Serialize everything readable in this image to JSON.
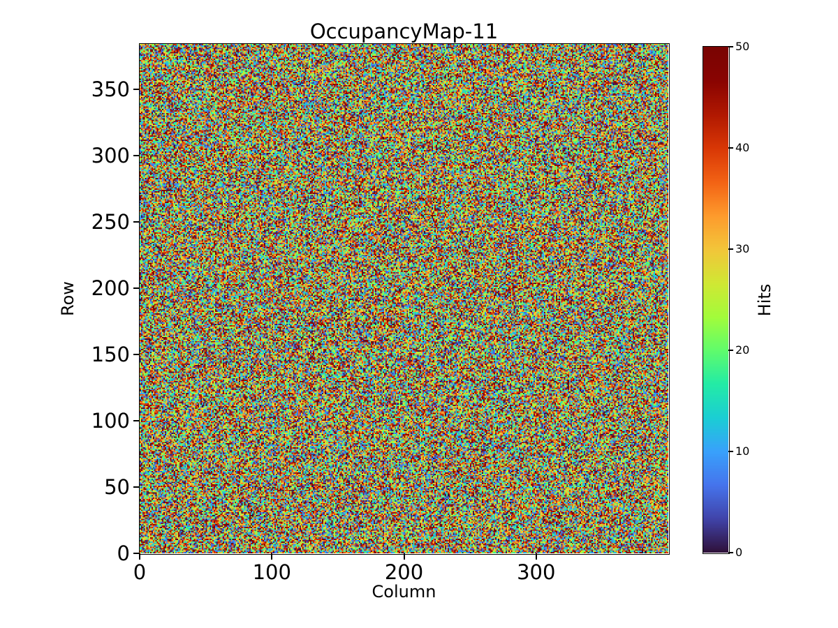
{
  "figure": {
    "background_color": "#ffffff",
    "text_color": "#000000"
  },
  "chart_data": {
    "type": "heatmap",
    "title": "OccupancyMap-11",
    "xlabel": "Column",
    "ylabel": "Row",
    "colorbar_label": "Hits",
    "n_cols": 400,
    "n_rows": 384,
    "x_range": [
      0,
      400
    ],
    "y_range": [
      0,
      384
    ],
    "value_range": [
      0,
      50
    ],
    "x_ticks": [
      0,
      100,
      200,
      300
    ],
    "y_ticks": [
      0,
      50,
      100,
      150,
      200,
      250,
      300,
      350
    ],
    "colorbar_ticks": [
      0,
      10,
      20,
      30,
      40,
      50
    ],
    "colormap": "turbo",
    "colormap_stops": [
      "#30123b",
      "#4145ab",
      "#4675ed",
      "#39a2fc",
      "#1bcfd4",
      "#24eca6",
      "#61fc6c",
      "#a4fc3b",
      "#d1e834",
      "#f3c63a",
      "#fe9b2d",
      "#f36315",
      "#d93806",
      "#b11901",
      "#8a0402",
      "#7a0403"
    ],
    "distribution": "uniform-random-integers",
    "seed": 11,
    "grid": false,
    "legend": "none",
    "origin": "lower"
  }
}
